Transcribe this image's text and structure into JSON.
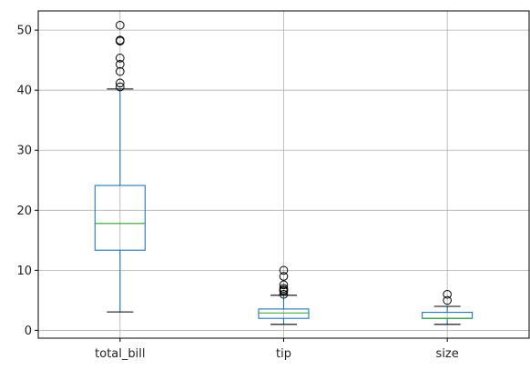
{
  "chart_data": {
    "type": "box",
    "categories": [
      "total_bill",
      "tip",
      "size"
    ],
    "yticks": [
      0,
      10,
      20,
      30,
      40,
      50
    ],
    "ylim": [
      -1.3,
      53.2
    ],
    "grid": true,
    "boxes": [
      {
        "name": "total_bill",
        "whisker_low": 3.07,
        "q1": 13.35,
        "median": 17.8,
        "q3": 24.13,
        "whisker_high": 40.2,
        "outliers": [
          40.55,
          41.19,
          43.11,
          44.3,
          45.35,
          48.17,
          48.27,
          48.33,
          50.81
        ]
      },
      {
        "name": "tip",
        "whisker_low": 1.0,
        "q1": 2.0,
        "median": 2.9,
        "q3": 3.56,
        "whisker_high": 5.85,
        "outliers": [
          6.0,
          6.5,
          6.7,
          6.73,
          7.0,
          7.58,
          9.0,
          10.0
        ]
      },
      {
        "name": "size",
        "whisker_low": 1.0,
        "q1": 2.0,
        "median": 2.0,
        "q3": 3.0,
        "whisker_high": 4.0,
        "outliers": [
          5.0,
          6.0
        ]
      }
    ],
    "colors": {
      "box": "#1f77b4",
      "median": "#2ca02c",
      "grid": "#b0b0b0",
      "outlier": "#000000"
    }
  }
}
